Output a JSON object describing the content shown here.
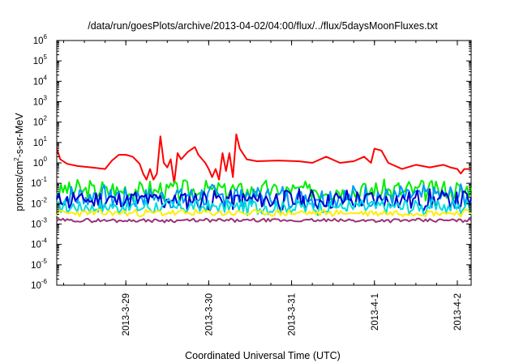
{
  "chart_data": {
    "type": "line",
    "title": "/data/run/goesPlots/archive/2013-04-02/04:00/flux/../flux/5daysMoonFluxes.txt",
    "xlabel": "Coordinated Universal Time (UTC)",
    "ylabel": {
      "prefix": "protons/cm",
      "sup": "2",
      "suffix": "-s-sr-MeV"
    },
    "y_scale": "log",
    "ylim": [
      1e-06,
      1000000.0
    ],
    "y_ticks": [
      {
        "base": "10",
        "exp": "-6",
        "value": -6
      },
      {
        "base": "10",
        "exp": "-5",
        "value": -5
      },
      {
        "base": "10",
        "exp": "-4",
        "value": -4
      },
      {
        "base": "10",
        "exp": "-3",
        "value": -3
      },
      {
        "base": "10",
        "exp": "-2",
        "value": -2
      },
      {
        "base": "10",
        "exp": "-1",
        "value": -1
      },
      {
        "base": "10",
        "exp": "0",
        "value": 0
      },
      {
        "base": "10",
        "exp": "1",
        "value": 1
      },
      {
        "base": "10",
        "exp": "2",
        "value": 2
      },
      {
        "base": "10",
        "exp": "3",
        "value": 3
      },
      {
        "base": "10",
        "exp": "4",
        "value": 4
      },
      {
        "base": "10",
        "exp": "5",
        "value": 5
      },
      {
        "base": "10",
        "exp": "6",
        "value": 6
      }
    ],
    "xlim": [
      "2013-03-28T04:00",
      "2013-04-02T04:00"
    ],
    "x_ticks": [
      {
        "label": "2013-3-29",
        "value": "2013-03-29T00:00"
      },
      {
        "label": "2013-3-30",
        "value": "2013-03-30T00:00"
      },
      {
        "label": "2013-3-31",
        "value": "2013-03-31T00:00"
      },
      {
        "label": "2013-4-1",
        "value": "2013-04-01T00:00"
      },
      {
        "label": "2013-4-2",
        "value": "2013-04-02T00:00"
      }
    ],
    "grid": false,
    "legend": "none",
    "series": [
      {
        "color": "#ff0000",
        "kind": "points",
        "points": [
          [
            "2013-03-28T04:00",
            5.0
          ],
          [
            "2013-03-28T05:00",
            1.5
          ],
          [
            "2013-03-28T07:00",
            0.9
          ],
          [
            "2013-03-28T10:00",
            0.7
          ],
          [
            "2013-03-28T14:00",
            0.6
          ],
          [
            "2013-03-28T18:00",
            0.5
          ],
          [
            "2013-03-28T20:00",
            1.3
          ],
          [
            "2013-03-28T22:00",
            2.5
          ],
          [
            "2013-03-29T00:00",
            2.5
          ],
          [
            "2013-03-29T02:00",
            2.0
          ],
          [
            "2013-03-29T04:00",
            0.9
          ],
          [
            "2013-03-29T05:00",
            0.3
          ],
          [
            "2013-03-29T06:00",
            0.15
          ],
          [
            "2013-03-29T07:00",
            0.5
          ],
          [
            "2013-03-29T08:00",
            0.15
          ],
          [
            "2013-03-29T09:00",
            0.3
          ],
          [
            "2013-03-29T10:00",
            20
          ],
          [
            "2013-03-29T11:00",
            1.0
          ],
          [
            "2013-03-29T12:00",
            0.6
          ],
          [
            "2013-03-29T13:00",
            1.5
          ],
          [
            "2013-03-29T14:00",
            0.1
          ],
          [
            "2013-03-29T15:00",
            3.0
          ],
          [
            "2013-03-29T16:00",
            1.5
          ],
          [
            "2013-03-29T18:00",
            3.5
          ],
          [
            "2013-03-29T20:00",
            6.0
          ],
          [
            "2013-03-29T21:00",
            2.5
          ],
          [
            "2013-03-29T23:00",
            1.0
          ],
          [
            "2013-03-30T00:00",
            0.5
          ],
          [
            "2013-03-30T01:00",
            0.2
          ],
          [
            "2013-03-30T02:00",
            0.5
          ],
          [
            "2013-03-30T03:00",
            0.15
          ],
          [
            "2013-03-30T04:00",
            3.0
          ],
          [
            "2013-03-30T05:00",
            0.4
          ],
          [
            "2013-03-30T06:00",
            3.0
          ],
          [
            "2013-03-30T07:00",
            0.2
          ],
          [
            "2013-03-30T08:00",
            25
          ],
          [
            "2013-03-30T09:00",
            5.0
          ],
          [
            "2013-03-30T11:00",
            1.5
          ],
          [
            "2013-03-30T14:00",
            1.2
          ],
          [
            "2013-03-30T20:00",
            1.3
          ],
          [
            "2013-03-31T02:00",
            1.2
          ],
          [
            "2013-03-31T06:00",
            1.0
          ],
          [
            "2013-03-31T10:00",
            2.0
          ],
          [
            "2013-03-31T14:00",
            1.0
          ],
          [
            "2013-03-31T18:00",
            1.2
          ],
          [
            "2013-03-31T21:00",
            2.0
          ],
          [
            "2013-03-31T23:00",
            1.0
          ],
          [
            "2013-04-01T00:00",
            5.0
          ],
          [
            "2013-04-01T02:00",
            4.0
          ],
          [
            "2013-04-01T04:00",
            1.0
          ],
          [
            "2013-04-01T08:00",
            0.5
          ],
          [
            "2013-04-01T12:00",
            0.8
          ],
          [
            "2013-04-01T16:00",
            0.6
          ],
          [
            "2013-04-01T20:00",
            0.8
          ],
          [
            "2013-04-01T22:00",
            0.6
          ],
          [
            "2013-04-02T00:00",
            0.5
          ],
          [
            "2013-04-02T01:00",
            0.3
          ],
          [
            "2013-04-02T02:00",
            0.5
          ],
          [
            "2013-04-02T04:00",
            0.5
          ]
        ]
      },
      {
        "color": "#00ee00",
        "kind": "band",
        "center": 0.045,
        "amplitude": 0.45,
        "seed": 3
      },
      {
        "color": "#0099ff",
        "kind": "band",
        "center": 0.022,
        "amplitude": 0.5,
        "seed": 7
      },
      {
        "color": "#0000cc",
        "kind": "band",
        "center": 0.015,
        "amplitude": 0.45,
        "seed": 11
      },
      {
        "color": "#00dddd",
        "kind": "band",
        "center": 0.007,
        "amplitude": 0.35,
        "seed": 17
      },
      {
        "color": "#ffee00",
        "kind": "band",
        "center": 0.0035,
        "amplitude": 0.15,
        "seed": 23
      },
      {
        "color": "#993377",
        "kind": "band",
        "center": 0.0015,
        "amplitude": 0.08,
        "seed": 29
      }
    ]
  }
}
